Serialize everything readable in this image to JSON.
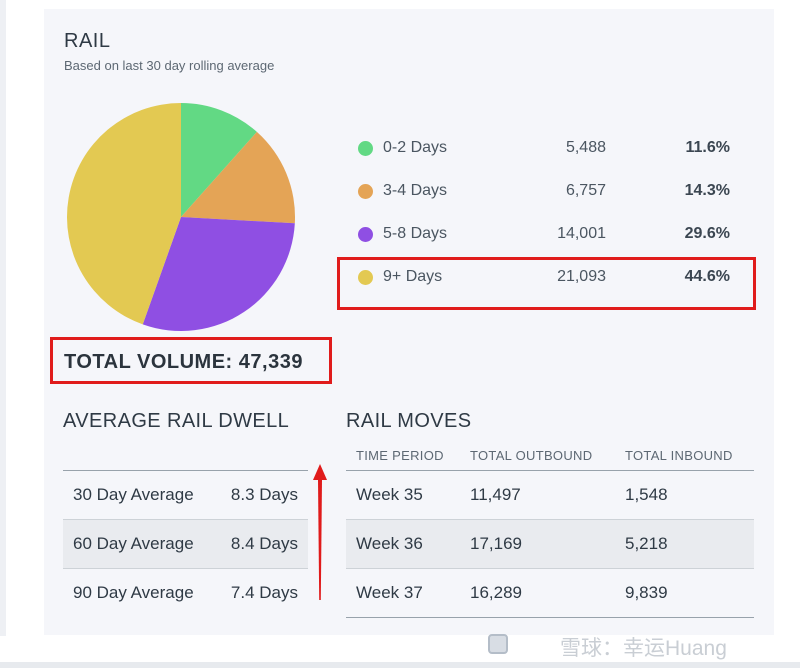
{
  "header": {
    "title": "RAIL",
    "subtitle": "Based on last 30 day rolling average"
  },
  "legend": [
    {
      "label": "0-2 Days",
      "count": "5,488",
      "percent": "11.6%",
      "color": "#62d984"
    },
    {
      "label": "3-4 Days",
      "count": "6,757",
      "percent": "14.3%",
      "color": "#e4a456"
    },
    {
      "label": "5-8 Days",
      "count": "14,001",
      "percent": "29.6%",
      "color": "#8f4fe3"
    },
    {
      "label": "9+ Days",
      "count": "21,093",
      "percent": "44.6%",
      "color": "#e3c952"
    }
  ],
  "chart_data": {
    "type": "pie",
    "categories": [
      "0-2 Days",
      "3-4 Days",
      "5-8 Days",
      "9+ Days"
    ],
    "values": [
      11.6,
      14.3,
      29.6,
      44.6
    ],
    "counts": [
      5488,
      6757,
      14001,
      21093
    ]
  },
  "total": {
    "text": "TOTAL VOLUME: 47,339"
  },
  "dwell": {
    "title": "AVERAGE RAIL DWELL",
    "rows": [
      {
        "label": "30 Day Average",
        "value": "8.3 Days"
      },
      {
        "label": "60 Day Average",
        "value": "8.4 Days"
      },
      {
        "label": "90 Day Average",
        "value": "7.4 Days"
      }
    ]
  },
  "moves": {
    "title": "RAIL MOVES",
    "columns": [
      "TIME PERIOD",
      "TOTAL OUTBOUND",
      "TOTAL INBOUND"
    ],
    "rows": [
      {
        "period": "Week 35",
        "outbound": "11,497",
        "inbound": "1,548"
      },
      {
        "period": "Week 36",
        "outbound": "17,169",
        "inbound": "5,218"
      },
      {
        "period": "Week 37",
        "outbound": "16,289",
        "inbound": "9,839"
      }
    ]
  },
  "annotations": {
    "highlight_color": "#e01b1b"
  },
  "watermark": {
    "text": "雪球：幸运Huang"
  }
}
